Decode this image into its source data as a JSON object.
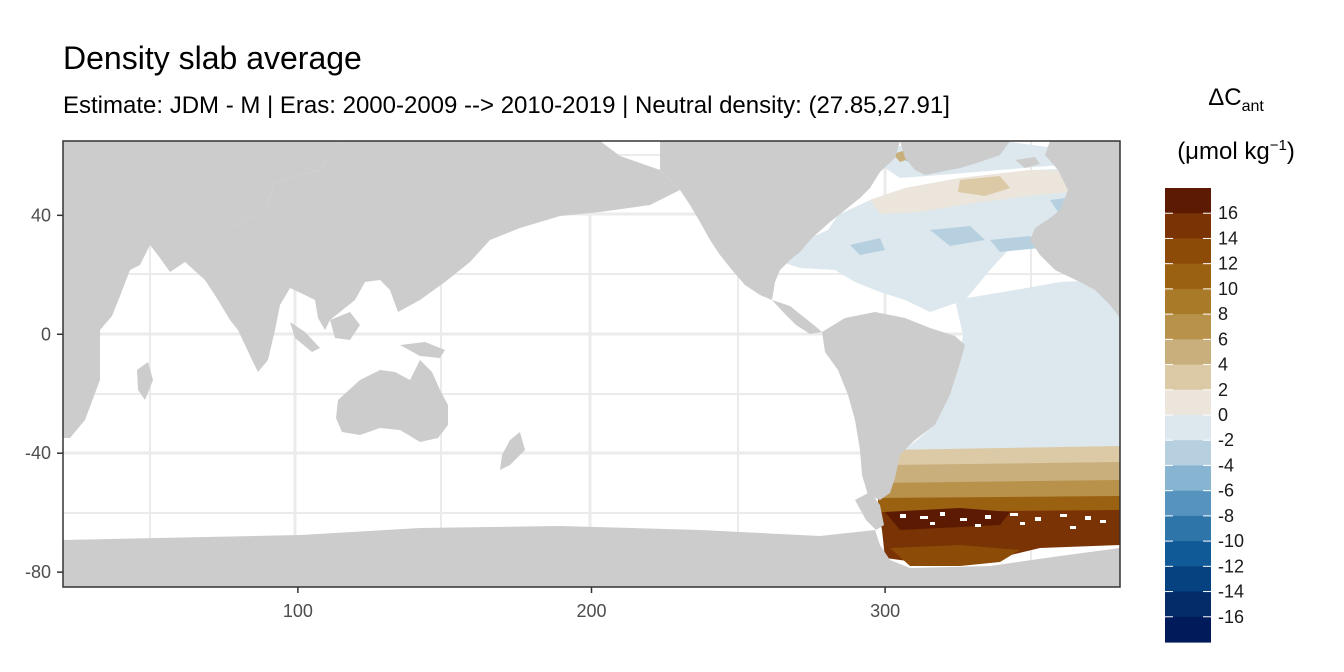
{
  "title": "Density slab average",
  "subtitle": "Estimate: JDM - M | Eras: 2000-2009 --> 2010-2019 | Neutral density: (27.85,27.91]",
  "legend": {
    "title_main": "ΔC",
    "title_sub": "ant",
    "unit_pre": "(μmol kg",
    "unit_sup": "−1",
    "unit_post": ")",
    "bins": [
      {
        "label": "16",
        "color": "#5c1a02"
      },
      {
        "label": "14",
        "color": "#7a3304"
      },
      {
        "label": "12",
        "color": "#8c4b06"
      },
      {
        "label": "10",
        "color": "#9a6210"
      },
      {
        "label": "8",
        "color": "#a97a27"
      },
      {
        "label": "6",
        "color": "#b8924a"
      },
      {
        "label": "4",
        "color": "#c9af7c"
      },
      {
        "label": "2",
        "color": "#dccaa6"
      },
      {
        "label": "0",
        "color": "#ebe5dc"
      },
      {
        "label": "-2",
        "color": "#dde8ee"
      },
      {
        "label": "-4",
        "color": "#b6d0e0"
      },
      {
        "label": "-6",
        "color": "#87b4d0"
      },
      {
        "label": "-8",
        "color": "#5694bf"
      },
      {
        "label": "-10",
        "color": "#2e76aa"
      },
      {
        "label": "-12",
        "color": "#0f5a97"
      },
      {
        "label": "-14",
        "color": "#05427f"
      },
      {
        "label": "-16",
        "color": "#032c69"
      },
      {
        "label": "",
        "color": "#011b5a"
      }
    ]
  },
  "axes": {
    "x_ticks": [
      100,
      200,
      300
    ],
    "y_ticks": [
      40,
      0,
      -40,
      -80
    ],
    "xlim": [
      20,
      380
    ],
    "ylim": [
      -85,
      65
    ]
  },
  "colors": {
    "land": "#cccccc",
    "ocean": "#ffffff",
    "grid": "#ebebeb",
    "border": "#333333"
  }
}
